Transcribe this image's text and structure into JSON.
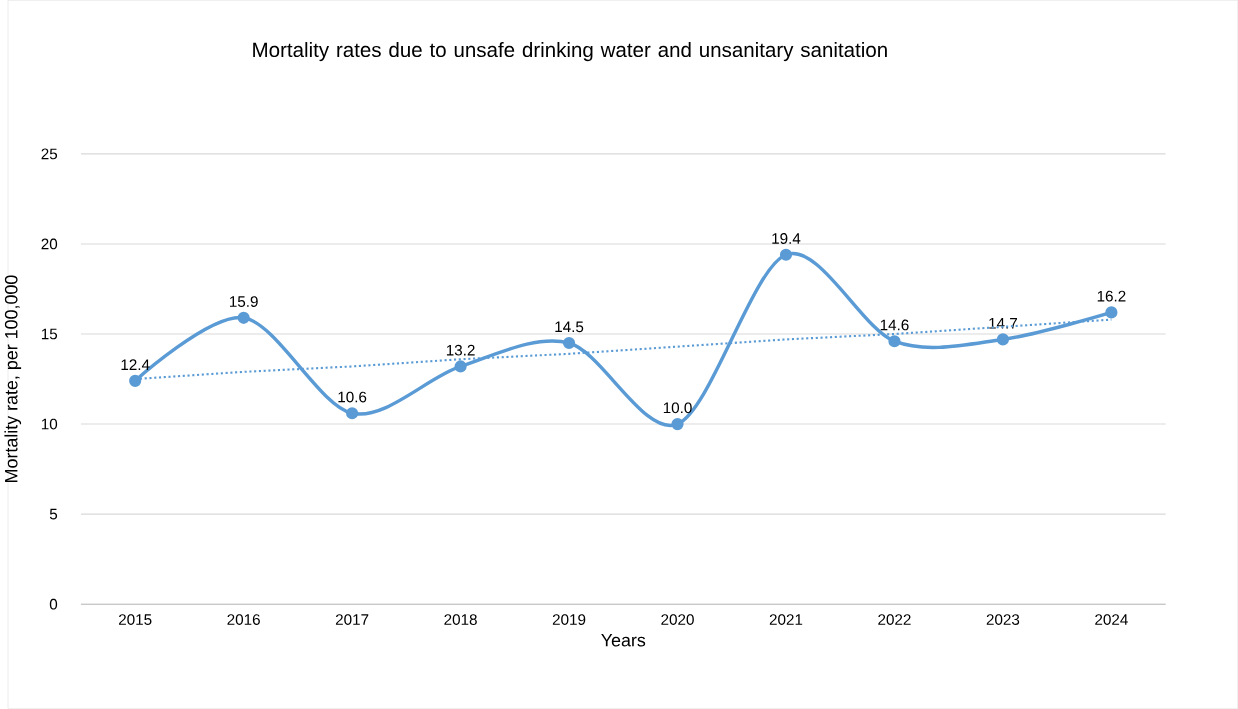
{
  "chart_data": {
    "type": "line",
    "title": "Mortality rates due to unsafe drinking water and unsanitary sanitation",
    "xlabel": "Years",
    "ylabel": "Mortality rate, per 100,000",
    "categories": [
      "2015",
      "2016",
      "2017",
      "2018",
      "2019",
      "2020",
      "2021",
      "2022",
      "2023",
      "2024"
    ],
    "series": [
      {
        "color": "#5b9bd5",
        "values": [
          12.4,
          15.9,
          10.6,
          13.2,
          14.5,
          10.0,
          19.4,
          14.6,
          14.7,
          16.2
        ],
        "value_labels": [
          "12.4",
          "15.9",
          "10.6",
          "13.2",
          "14.5",
          "10.0",
          "19.4",
          "14.6",
          "14.7",
          "16.2"
        ],
        "marker": "circle",
        "line_style": "solid"
      },
      {
        "color": "#5b9bd5",
        "values": [
          12.5,
          12.9,
          13.2,
          13.6,
          13.9,
          14.3,
          14.7,
          15.0,
          15.4,
          15.8
        ],
        "marker": "none",
        "line_style": "dotted"
      }
    ],
    "ylim": [
      0,
      25
    ],
    "yticks": [
      0,
      5,
      10,
      15,
      20,
      25
    ],
    "grid": "y"
  }
}
